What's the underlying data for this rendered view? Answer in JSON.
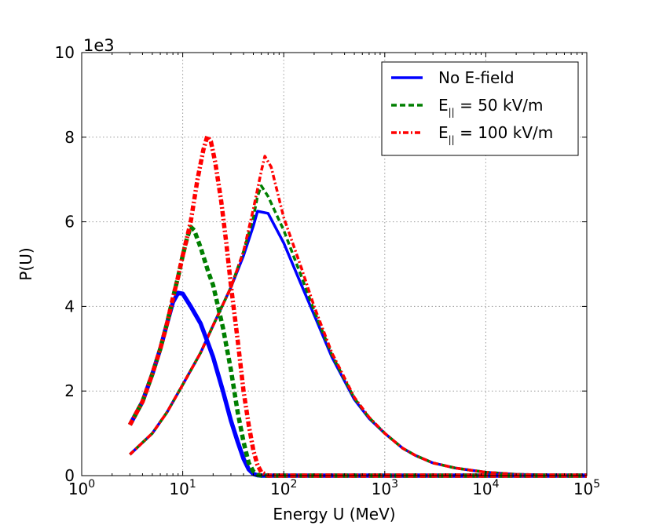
{
  "chart_data": {
    "type": "line",
    "title": "",
    "xlabel": "Energy U (MeV)",
    "ylabel": "P(U)",
    "xscale": "log",
    "xlim": [
      1,
      100000
    ],
    "ylim": [
      0,
      10000
    ],
    "y_offset_label": "1e3",
    "x_ticks": [
      {
        "value": 1,
        "base": "10",
        "exp": "0"
      },
      {
        "value": 10,
        "base": "10",
        "exp": "1"
      },
      {
        "value": 100,
        "base": "10",
        "exp": "2"
      },
      {
        "value": 1000,
        "base": "10",
        "exp": "3"
      },
      {
        "value": 10000,
        "base": "10",
        "exp": "4"
      },
      {
        "value": 100000,
        "base": "10",
        "exp": "5"
      }
    ],
    "y_ticks": [
      {
        "value": 0,
        "label": "0"
      },
      {
        "value": 2000,
        "label": "2"
      },
      {
        "value": 4000,
        "label": "4"
      },
      {
        "value": 6000,
        "label": "6"
      },
      {
        "value": 8000,
        "label": "8"
      },
      {
        "value": 10000,
        "label": "10"
      }
    ],
    "grid": true,
    "legend_position": "top-right",
    "legend": [
      {
        "series": "no_efield",
        "text": "No E-field",
        "sub": "",
        "suffix": ""
      },
      {
        "series": "e50",
        "text": "E",
        "sub": "||",
        "suffix": " = 50 kV/m"
      },
      {
        "series": "e100",
        "text": "E",
        "sub": "||",
        "suffix": " = 100 kV/m"
      }
    ],
    "series": [
      {
        "id": "no_efield",
        "name": "No E-field",
        "group": "thick",
        "color": "#0000ff",
        "style": "solid",
        "width": 5.5,
        "x": [
          3,
          4,
          5,
          6,
          7,
          8,
          9,
          10,
          12,
          15,
          18,
          20,
          25,
          30,
          35,
          40,
          45,
          50,
          55,
          60,
          70,
          100,
          1000,
          10000,
          100000
        ],
        "y": [
          1200,
          1750,
          2400,
          3000,
          3600,
          4100,
          4320,
          4300,
          4000,
          3600,
          3100,
          2800,
          2000,
          1300,
          800,
          400,
          150,
          40,
          10,
          0,
          0,
          0,
          0,
          0,
          0
        ]
      },
      {
        "id": "e50",
        "name": "E|| = 50 kV/m",
        "group": "thick",
        "color": "#007f00",
        "style": "dashed",
        "width": 5.5,
        "x": [
          3,
          4,
          5,
          6,
          7,
          8,
          9,
          10,
          11,
          12,
          13,
          15,
          18,
          20,
          25,
          30,
          35,
          40,
          45,
          50,
          55,
          60,
          70,
          100,
          1000,
          10000,
          100000
        ],
        "y": [
          1200,
          1750,
          2400,
          3000,
          3600,
          4200,
          4700,
          5200,
          5600,
          5880,
          5800,
          5400,
          4800,
          4500,
          3500,
          2500,
          1500,
          800,
          300,
          100,
          20,
          0,
          0,
          0,
          0,
          0,
          0
        ]
      },
      {
        "id": "e100",
        "name": "E|| = 100 kV/m",
        "group": "thick",
        "color": "#ff0000",
        "style": "dashdot",
        "width": 5.5,
        "x": [
          3,
          4,
          5,
          6,
          7,
          8,
          9,
          10,
          12,
          14,
          16,
          17.5,
          19,
          21,
          24,
          27,
          30,
          35,
          40,
          45,
          50,
          55,
          60,
          70,
          100,
          1000,
          10000,
          100000
        ],
        "y": [
          1200,
          1750,
          2400,
          3000,
          3600,
          4200,
          4700,
          5200,
          6000,
          7000,
          7700,
          8020,
          7900,
          7400,
          6500,
          5500,
          4500,
          3200,
          2000,
          1200,
          600,
          250,
          80,
          0,
          0,
          0,
          0,
          0
        ]
      },
      {
        "id": "no_efield_thin",
        "name": "No E-field",
        "group": "thin",
        "color": "#0000ff",
        "style": "solid",
        "width": 3.5,
        "x": [
          3,
          5,
          7,
          10,
          15,
          20,
          30,
          40,
          50,
          55,
          70,
          100,
          150,
          200,
          300,
          500,
          700,
          1000,
          1500,
          2000,
          3000,
          5000,
          7000,
          10000,
          20000,
          50000,
          100000
        ],
        "y": [
          500,
          1000,
          1500,
          2150,
          2900,
          3550,
          4450,
          5200,
          5900,
          6250,
          6200,
          5500,
          4500,
          3800,
          2800,
          1800,
          1350,
          1000,
          650,
          480,
          300,
          180,
          130,
          80,
          30,
          10,
          5
        ]
      },
      {
        "id": "e50_thin",
        "name": "E|| = 50 kV/m",
        "group": "thin",
        "color": "#007f00",
        "style": "dashed",
        "width": 3.5,
        "x": [
          3,
          5,
          7,
          10,
          15,
          20,
          30,
          40,
          50,
          55,
          60,
          70,
          100,
          150,
          200,
          300,
          500,
          700,
          1000,
          1500,
          2000,
          3000,
          5000,
          7000,
          10000,
          20000,
          50000,
          100000
        ],
        "y": [
          500,
          1000,
          1500,
          2150,
          2900,
          3550,
          4450,
          5300,
          6100,
          6600,
          6850,
          6600,
          5800,
          4700,
          3900,
          2850,
          1830,
          1370,
          1000,
          650,
          480,
          300,
          180,
          130,
          80,
          30,
          10,
          5
        ]
      },
      {
        "id": "e100_thin",
        "name": "E|| = 100 kV/m",
        "group": "thin",
        "color": "#ff0000",
        "style": "dashdot",
        "width": 3.5,
        "x": [
          3,
          5,
          7,
          10,
          15,
          20,
          30,
          40,
          50,
          60,
          65,
          75,
          100,
          150,
          200,
          300,
          500,
          700,
          1000,
          1500,
          2000,
          3000,
          5000,
          7000,
          10000,
          20000,
          50000,
          100000
        ],
        "y": [
          500,
          1000,
          1500,
          2150,
          2900,
          3550,
          4450,
          5300,
          6300,
          7200,
          7550,
          7300,
          6100,
          4900,
          4000,
          2900,
          1850,
          1380,
          1000,
          650,
          480,
          300,
          180,
          130,
          80,
          30,
          10,
          5
        ]
      }
    ]
  }
}
